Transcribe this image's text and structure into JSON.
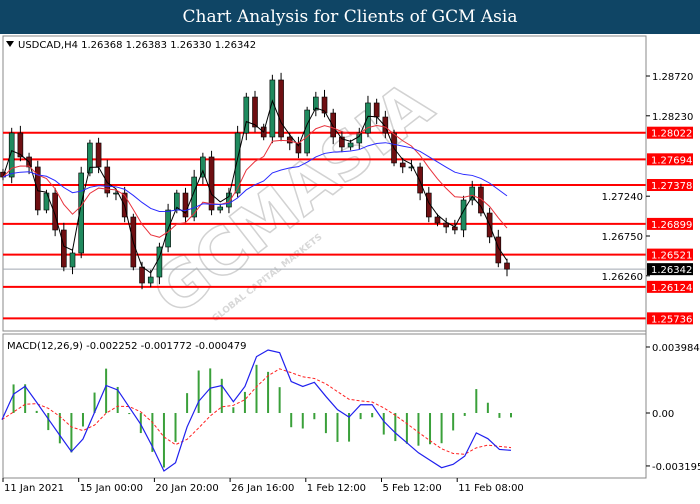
{
  "header": {
    "title": "Chart Analysis for Clients of GCM Asia"
  },
  "watermark": {
    "text": "GCMASIA",
    "subtext": "GLOBAL CAPITAL MARKETS"
  },
  "colors": {
    "bull": "#1f8a5e",
    "bear": "#6e0f12",
    "level": "#ff0000",
    "ma_fast": "#000000",
    "ma_mid": "#e8323c",
    "ma_slow": "#2a2aff",
    "macd": "#2020ee",
    "signal": "#ff2020",
    "histogram": "#3aa03a",
    "current_price_bg": "#000000"
  },
  "chart_data": [
    {
      "type": "candlestick",
      "symbol_info": "USDCAD,H4  1.26368 1.26383 1.26330 1.26342",
      "ylim": [
        1.2555,
        1.2905
      ],
      "y_ticks": [
        "1.28720",
        "1.28230",
        "1.27240",
        "1.26750",
        "1.26260"
      ],
      "y_tick_values": [
        1.2872,
        1.2823,
        1.2724,
        1.2675,
        1.2626
      ],
      "levels": [
        1.28022,
        1.27694,
        1.27378,
        1.26899,
        1.26521,
        1.26124,
        1.25736
      ],
      "level_labels": [
        "1.28022",
        "1.27694",
        "1.27378",
        "1.26899",
        "1.26521",
        "1.26124",
        "1.25736"
      ],
      "current_price": 1.26342,
      "current_price_label": "1.26342",
      "closes": [
        1.27476,
        1.28018,
        1.27723,
        1.276,
        1.2707,
        1.27279,
        1.26824,
        1.26368,
        1.26541,
        1.27526,
        1.27895,
        1.276,
        1.27279,
        1.27279,
        1.26984,
        1.26368,
        1.26171,
        1.26245,
        1.26615,
        1.2707,
        1.27279,
        1.26984,
        1.27476,
        1.27723,
        1.2707,
        1.27107,
        1.27279,
        1.28018,
        1.28461,
        1.28092,
        1.27969,
        1.28671,
        1.27969,
        1.27895,
        1.27772,
        1.28301,
        1.28461,
        1.28264,
        1.27969,
        1.27846,
        1.27895,
        1.28018,
        1.28388,
        1.28215,
        1.28018,
        1.27649,
        1.276,
        1.276,
        1.27279,
        1.26984,
        1.2691,
        1.26861,
        1.26824,
        1.27193,
        1.27353,
        1.27033,
        1.26738,
        1.26418,
        1.26342
      ]
    },
    {
      "type": "line",
      "title": "MACD(12,26,9) -0.002252 -0.001772 -0.000479",
      "ylim": [
        -0.0037,
        0.0043
      ],
      "y_ticks": [
        "0.003984",
        "0.00",
        "-0.003195"
      ],
      "y_tick_values": [
        0.003984,
        0,
        -0.003195
      ],
      "macd": [
        -0.0004,
        0.00114,
        0.00161,
        0.00064,
        -0.00036,
        -0.00135,
        -0.00233,
        -0.00157,
        4e-05,
        0.00166,
        0.00139,
        0.00035,
        -0.00069,
        -0.00203,
        -0.0035,
        -0.003,
        -0.00084,
        0.0007,
        0.0015,
        0.00166,
        0.00068,
        0.0016,
        0.0034,
        0.0038,
        0.00364,
        0.0019,
        0.0016,
        0.00185,
        0.001,
        0.0002,
        -0.00025,
        0.0005,
        0.0005,
        -0.0005,
        -0.0012,
        -0.0018,
        -0.0024,
        -0.00285,
        -0.0033,
        -0.0031,
        -0.0026,
        -0.0012,
        -0.00155,
        -0.0022,
        -0.002252
      ]
    }
  ],
  "x_axis": {
    "labels": [
      "11 Jan 2021",
      "15 Jan 00:00",
      "20 Jan 20:00",
      "26 Jan 16:00",
      "1 Feb 12:00",
      "5 Feb 12:00",
      "11 Feb 08:00"
    ]
  }
}
